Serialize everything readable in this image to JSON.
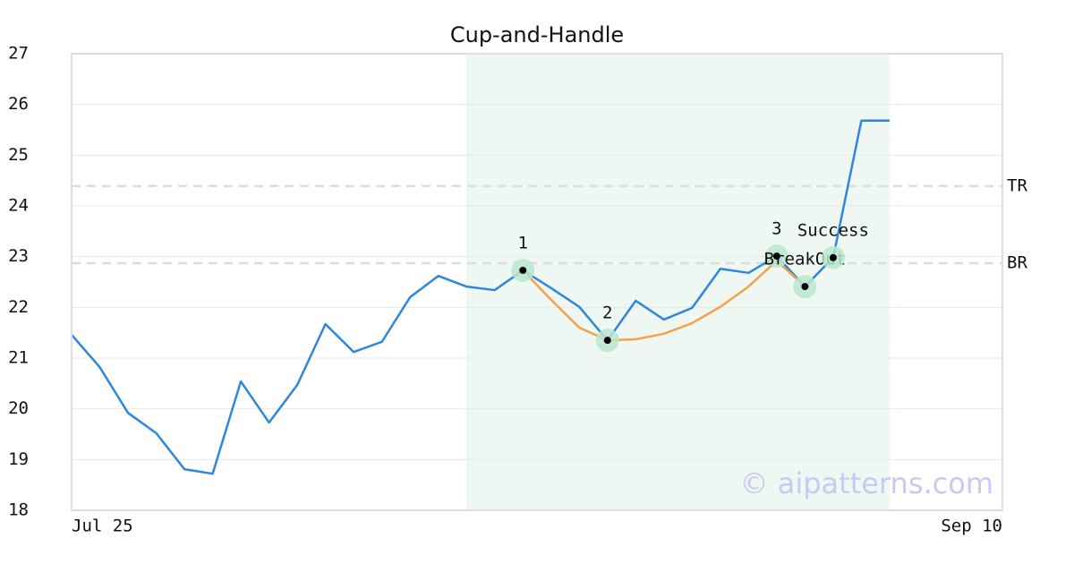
{
  "chart_data": {
    "type": "line",
    "title": "Cup-and-Handle",
    "categories": [
      "Jul 25",
      null,
      null,
      null,
      null,
      null,
      null,
      null,
      null,
      null,
      null,
      null,
      null,
      null,
      null,
      null,
      null,
      null,
      null,
      null,
      null,
      null,
      null,
      null,
      null,
      null,
      null,
      null,
      null,
      null,
      null,
      null,
      null,
      "Sep 10"
    ],
    "series": [
      {
        "color": "#2e86de",
        "values": [
          21.46,
          20.82,
          19.92,
          19.52,
          18.81,
          18.72,
          20.54,
          19.73,
          20.47,
          21.67,
          21.12,
          21.32,
          22.2,
          22.62,
          22.41,
          22.34,
          22.73,
          22.38,
          22.01,
          21.35,
          22.13,
          21.76,
          21.99,
          22.76,
          22.68,
          23.01,
          22.41,
          22.98,
          25.68,
          25.68,
          null,
          null,
          null,
          null
        ]
      },
      {
        "color": "#f5a04a",
        "values": [
          null,
          null,
          null,
          null,
          null,
          null,
          null,
          null,
          null,
          null,
          null,
          null,
          null,
          null,
          null,
          null,
          22.73,
          22.15,
          21.6,
          21.35,
          21.37,
          21.48,
          21.69,
          22.01,
          22.41,
          22.92,
          22.41,
          null,
          null,
          null,
          null,
          null,
          null,
          null
        ]
      }
    ],
    "ylim": [
      18,
      27
    ],
    "yticks": [
      18,
      19,
      20,
      21,
      22,
      23,
      24,
      25,
      26,
      27
    ],
    "grid": true,
    "highlight_range": [
      14,
      29
    ],
    "hlines": [
      {
        "label": "TR",
        "value": 24.39
      },
      {
        "label": "BR",
        "value": 22.87
      }
    ],
    "points": [
      {
        "label": "1",
        "index": 16,
        "value": 22.73
      },
      {
        "label": "2",
        "index": 19,
        "value": 21.35
      },
      {
        "label": "3",
        "index": 25,
        "value": 23.01
      },
      {
        "label": "BreakOut",
        "index": 26,
        "value": 22.41
      },
      {
        "label": "Success",
        "index": 27,
        "value": 22.98
      }
    ],
    "watermark": "© aipatterns.com"
  }
}
